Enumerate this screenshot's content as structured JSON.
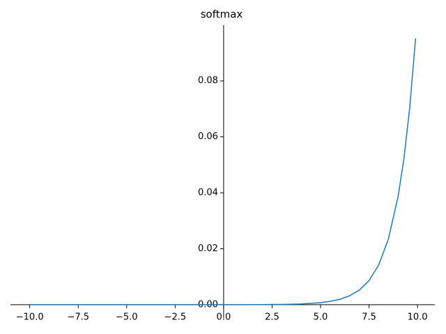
{
  "chart_data": {
    "type": "line",
    "title": "softmax",
    "x": [
      -10,
      -8,
      -6,
      -4,
      -2,
      0,
      2,
      3,
      4,
      5,
      5.5,
      6,
      6.5,
      7,
      7.5,
      8,
      8.5,
      9,
      9.3,
      9.6,
      9.9
    ],
    "series": [
      {
        "name": "softmax",
        "color": "#1f77b4",
        "values": [
          0,
          0,
          0,
          0,
          0,
          0,
          4e-05,
          0.0001,
          0.00026,
          0.0007,
          0.0012,
          0.0019,
          0.0032,
          0.0052,
          0.0086,
          0.0142,
          0.0235,
          0.0387,
          0.0522,
          0.0705,
          0.0952
        ]
      }
    ],
    "xlim": [
      -10.995,
      10.895
    ],
    "ylim": [
      -0.00476,
      0.09996
    ],
    "xticks": [
      {
        "value": -10,
        "label": "−10.0"
      },
      {
        "value": -7.5,
        "label": "−7.5"
      },
      {
        "value": -5,
        "label": "−5.0"
      },
      {
        "value": -2.5,
        "label": "−2.5"
      },
      {
        "value": 0,
        "label": "0.0"
      },
      {
        "value": 2.5,
        "label": "2.5"
      },
      {
        "value": 5,
        "label": "5.0"
      },
      {
        "value": 7.5,
        "label": "7.5"
      },
      {
        "value": 10,
        "label": "10.0"
      }
    ],
    "yticks": [
      {
        "value": 0,
        "label": "0.00"
      },
      {
        "value": 0.02,
        "label": "0.02"
      },
      {
        "value": 0.04,
        "label": "0.04"
      },
      {
        "value": 0.06,
        "label": "0.06"
      },
      {
        "value": 0.08,
        "label": "0.08"
      }
    ],
    "grid": false
  }
}
